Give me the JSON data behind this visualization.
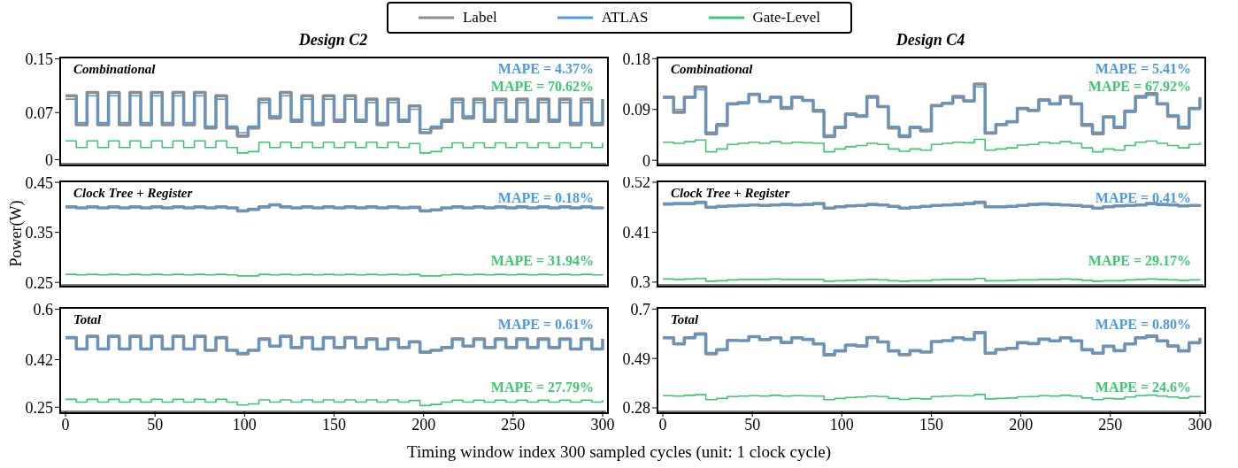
{
  "chart_data": [
    {
      "type": "step",
      "title": "Design C2",
      "subtitle": "Combinational",
      "legend": "top",
      "marker": "none",
      "line_style": "solid",
      "tick_labels": "y",
      "xlim": [
        -3,
        302
      ],
      "ylim": [
        -0.006,
        0.152
      ],
      "yticks": [
        0,
        0.07,
        0.15
      ],
      "x": [
        0,
        6,
        12,
        18,
        24,
        30,
        36,
        42,
        48,
        54,
        60,
        66,
        72,
        78,
        84,
        90,
        96,
        102,
        108,
        114,
        120,
        126,
        132,
        138,
        144,
        150,
        156,
        162,
        168,
        174,
        180,
        186,
        192,
        198,
        204,
        210,
        216,
        222,
        228,
        234,
        240,
        246,
        252,
        258,
        264,
        270,
        276,
        282,
        288,
        294,
        300
      ],
      "annotations": [
        "MAPE = 4.37%",
        "MAPE = 70.62%"
      ],
      "series": [
        {
          "name": "Label",
          "color": "#8c8c8c",
          "values": [
            0.095,
            0.052,
            0.1,
            0.052,
            0.1,
            0.052,
            0.1,
            0.052,
            0.1,
            0.052,
            0.1,
            0.052,
            0.1,
            0.047,
            0.095,
            0.047,
            0.035,
            0.047,
            0.09,
            0.062,
            0.1,
            0.057,
            0.095,
            0.052,
            0.095,
            0.057,
            0.095,
            0.057,
            0.09,
            0.052,
            0.09,
            0.057,
            0.08,
            0.04,
            0.047,
            0.057,
            0.09,
            0.062,
            0.09,
            0.057,
            0.09,
            0.057,
            0.09,
            0.057,
            0.09,
            0.057,
            0.09,
            0.052,
            0.09,
            0.052,
            0.09
          ]
        },
        {
          "name": "ATLAS",
          "color": "#4a9be3",
          "values": [
            0.09,
            0.055,
            0.095,
            0.055,
            0.095,
            0.055,
            0.095,
            0.055,
            0.095,
            0.055,
            0.095,
            0.055,
            0.095,
            0.05,
            0.09,
            0.05,
            0.04,
            0.05,
            0.085,
            0.065,
            0.095,
            0.06,
            0.09,
            0.055,
            0.09,
            0.06,
            0.09,
            0.06,
            0.085,
            0.055,
            0.085,
            0.06,
            0.075,
            0.045,
            0.05,
            0.06,
            0.085,
            0.065,
            0.085,
            0.06,
            0.085,
            0.06,
            0.085,
            0.06,
            0.085,
            0.06,
            0.085,
            0.055,
            0.085,
            0.055,
            0.085
          ]
        },
        {
          "name": "Gate-Level",
          "color": "#3cc870",
          "values": [
            0.028,
            0.018,
            0.028,
            0.018,
            0.028,
            0.018,
            0.028,
            0.018,
            0.028,
            0.018,
            0.028,
            0.018,
            0.028,
            0.018,
            0.028,
            0.018,
            0.01,
            0.012,
            0.026,
            0.018,
            0.026,
            0.018,
            0.026,
            0.018,
            0.026,
            0.018,
            0.026,
            0.018,
            0.026,
            0.018,
            0.026,
            0.018,
            0.024,
            0.01,
            0.012,
            0.018,
            0.025,
            0.018,
            0.025,
            0.018,
            0.025,
            0.018,
            0.025,
            0.018,
            0.025,
            0.018,
            0.025,
            0.018,
            0.025,
            0.018,
            0.025
          ]
        }
      ]
    },
    {
      "type": "step",
      "title": "Design C4",
      "subtitle": "Combinational",
      "marker": "none",
      "line_style": "solid",
      "tick_labels": "y",
      "xlim": [
        -3,
        302
      ],
      "ylim": [
        -0.006,
        0.182
      ],
      "yticks": [
        0,
        0.09,
        0.18
      ],
      "x": [
        0,
        6,
        12,
        18,
        24,
        30,
        36,
        42,
        48,
        54,
        60,
        66,
        72,
        78,
        84,
        90,
        96,
        102,
        108,
        114,
        120,
        126,
        132,
        138,
        144,
        150,
        156,
        162,
        168,
        174,
        180,
        186,
        192,
        198,
        204,
        210,
        216,
        222,
        228,
        234,
        240,
        246,
        252,
        258,
        264,
        270,
        276,
        282,
        288,
        294,
        300
      ],
      "annotations": [
        "MAPE = 5.41%",
        "MAPE = 67.92%"
      ],
      "series": [
        {
          "color": "#8c8c8c",
          "values": [
            0.112,
            0.085,
            0.112,
            0.13,
            0.047,
            0.062,
            0.1,
            0.102,
            0.117,
            0.104,
            0.112,
            0.092,
            0.112,
            0.106,
            0.087,
            0.042,
            0.058,
            0.082,
            0.078,
            0.113,
            0.095,
            0.057,
            0.042,
            0.058,
            0.052,
            0.097,
            0.101,
            0.113,
            0.105,
            0.135,
            0.048,
            0.063,
            0.068,
            0.092,
            0.088,
            0.107,
            0.1,
            0.113,
            0.1,
            0.062,
            0.047,
            0.077,
            0.058,
            0.087,
            0.113,
            0.118,
            0.1,
            0.078,
            0.057,
            0.092,
            0.112
          ]
        },
        {
          "color": "#4a9be3",
          "values": [
            0.11,
            0.09,
            0.11,
            0.125,
            0.05,
            0.065,
            0.1,
            0.1,
            0.115,
            0.105,
            0.11,
            0.095,
            0.11,
            0.105,
            0.09,
            0.045,
            0.06,
            0.08,
            0.08,
            0.11,
            0.095,
            0.06,
            0.045,
            0.06,
            0.055,
            0.095,
            0.1,
            0.11,
            0.105,
            0.13,
            0.05,
            0.065,
            0.07,
            0.09,
            0.09,
            0.105,
            0.1,
            0.11,
            0.1,
            0.065,
            0.05,
            0.075,
            0.06,
            0.085,
            0.11,
            0.115,
            0.1,
            0.08,
            0.06,
            0.09,
            0.11
          ]
        },
        {
          "color": "#3cc870",
          "values": [
            0.032,
            0.03,
            0.033,
            0.036,
            0.015,
            0.02,
            0.028,
            0.03,
            0.032,
            0.03,
            0.033,
            0.03,
            0.032,
            0.031,
            0.03,
            0.015,
            0.02,
            0.024,
            0.026,
            0.03,
            0.028,
            0.02,
            0.016,
            0.02,
            0.018,
            0.028,
            0.03,
            0.032,
            0.031,
            0.037,
            0.018,
            0.02,
            0.022,
            0.027,
            0.028,
            0.032,
            0.03,
            0.033,
            0.03,
            0.022,
            0.015,
            0.02,
            0.018,
            0.026,
            0.032,
            0.034,
            0.03,
            0.026,
            0.022,
            0.028,
            0.032
          ]
        }
      ]
    },
    {
      "type": "step",
      "subtitle": "Clock Tree + Register",
      "ylabel": "Power(W)",
      "marker": "none",
      "line_style": "solid",
      "tick_labels": "y",
      "xlim": [
        -3,
        302
      ],
      "ylim": [
        0.245,
        0.452
      ],
      "yticks": [
        0.25,
        0.35,
        0.45
      ],
      "x": [
        0,
        6,
        12,
        18,
        24,
        30,
        36,
        42,
        48,
        54,
        60,
        66,
        72,
        78,
        84,
        90,
        96,
        102,
        108,
        114,
        120,
        126,
        132,
        138,
        144,
        150,
        156,
        162,
        168,
        174,
        180,
        186,
        192,
        198,
        204,
        210,
        216,
        222,
        228,
        234,
        240,
        246,
        252,
        258,
        264,
        270,
        276,
        282,
        288,
        294,
        300
      ],
      "annotations": [
        "MAPE = 0.18%",
        "MAPE = 31.94%"
      ],
      "series": [
        {
          "color": "#8c8c8c",
          "values": [
            0.401,
            0.399,
            0.401,
            0.399,
            0.401,
            0.399,
            0.401,
            0.399,
            0.401,
            0.399,
            0.401,
            0.399,
            0.401,
            0.399,
            0.401,
            0.399,
            0.393,
            0.396,
            0.401,
            0.405,
            0.401,
            0.399,
            0.401,
            0.399,
            0.401,
            0.399,
            0.401,
            0.399,
            0.401,
            0.399,
            0.401,
            0.399,
            0.4,
            0.393,
            0.395,
            0.399,
            0.401,
            0.399,
            0.401,
            0.399,
            0.401,
            0.399,
            0.401,
            0.399,
            0.401,
            0.399,
            0.401,
            0.399,
            0.401,
            0.399,
            0.401
          ]
        },
        {
          "color": "#4a9be3",
          "values": [
            0.401,
            0.399,
            0.401,
            0.399,
            0.401,
            0.399,
            0.401,
            0.399,
            0.401,
            0.399,
            0.401,
            0.399,
            0.401,
            0.399,
            0.401,
            0.399,
            0.394,
            0.396,
            0.401,
            0.404,
            0.401,
            0.399,
            0.401,
            0.399,
            0.401,
            0.399,
            0.401,
            0.399,
            0.401,
            0.399,
            0.401,
            0.399,
            0.4,
            0.394,
            0.395,
            0.399,
            0.401,
            0.399,
            0.401,
            0.399,
            0.401,
            0.399,
            0.401,
            0.399,
            0.401,
            0.399,
            0.401,
            0.399,
            0.401,
            0.399,
            0.401
          ]
        },
        {
          "color": "#3cc870",
          "values": [
            0.266,
            0.265,
            0.266,
            0.265,
            0.266,
            0.265,
            0.266,
            0.265,
            0.266,
            0.265,
            0.266,
            0.265,
            0.266,
            0.265,
            0.266,
            0.265,
            0.263,
            0.263,
            0.266,
            0.265,
            0.266,
            0.265,
            0.266,
            0.265,
            0.266,
            0.265,
            0.266,
            0.265,
            0.266,
            0.265,
            0.266,
            0.265,
            0.266,
            0.263,
            0.263,
            0.265,
            0.266,
            0.265,
            0.266,
            0.265,
            0.266,
            0.265,
            0.266,
            0.265,
            0.266,
            0.265,
            0.266,
            0.265,
            0.266,
            0.265,
            0.266
          ]
        }
      ]
    },
    {
      "type": "step",
      "subtitle": "Clock Tree + Register",
      "marker": "none",
      "line_style": "solid",
      "tick_labels": "y",
      "xlim": [
        -3,
        302
      ],
      "ylim": [
        0.294,
        0.522
      ],
      "yticks": [
        0.3,
        0.41,
        0.52
      ],
      "x": [
        0,
        6,
        12,
        18,
        24,
        30,
        36,
        42,
        48,
        54,
        60,
        66,
        72,
        78,
        84,
        90,
        96,
        102,
        108,
        114,
        120,
        126,
        132,
        138,
        144,
        150,
        156,
        162,
        168,
        174,
        180,
        186,
        192,
        198,
        204,
        210,
        216,
        222,
        228,
        234,
        240,
        246,
        252,
        258,
        264,
        270,
        276,
        282,
        288,
        294,
        300
      ],
      "annotations": [
        "MAPE = 0.41%",
        "MAPE = 29.17%"
      ],
      "series": [
        {
          "color": "#8c8c8c",
          "values": [
            0.472,
            0.473,
            0.473,
            0.476,
            0.465,
            0.467,
            0.468,
            0.469,
            0.47,
            0.469,
            0.47,
            0.471,
            0.47,
            0.471,
            0.473,
            0.463,
            0.466,
            0.468,
            0.469,
            0.471,
            0.47,
            0.467,
            0.463,
            0.465,
            0.467,
            0.469,
            0.47,
            0.471,
            0.473,
            0.476,
            0.466,
            0.466,
            0.467,
            0.469,
            0.471,
            0.472,
            0.471,
            0.47,
            0.469,
            0.467,
            0.463,
            0.466,
            0.468,
            0.469,
            0.47,
            0.473,
            0.471,
            0.47,
            0.468,
            0.469,
            0.471
          ]
        },
        {
          "color": "#4a9be3",
          "values": [
            0.472,
            0.473,
            0.472,
            0.474,
            0.465,
            0.467,
            0.468,
            0.469,
            0.47,
            0.469,
            0.47,
            0.471,
            0.47,
            0.471,
            0.472,
            0.464,
            0.466,
            0.468,
            0.469,
            0.471,
            0.47,
            0.467,
            0.464,
            0.465,
            0.467,
            0.469,
            0.47,
            0.471,
            0.472,
            0.474,
            0.466,
            0.466,
            0.467,
            0.469,
            0.471,
            0.472,
            0.471,
            0.47,
            0.469,
            0.467,
            0.464,
            0.466,
            0.468,
            0.469,
            0.47,
            0.472,
            0.471,
            0.47,
            0.468,
            0.469,
            0.471
          ]
        },
        {
          "color": "#3cc870",
          "values": [
            0.307,
            0.306,
            0.307,
            0.308,
            0.302,
            0.303,
            0.305,
            0.306,
            0.306,
            0.306,
            0.307,
            0.306,
            0.306,
            0.306,
            0.306,
            0.302,
            0.303,
            0.304,
            0.305,
            0.306,
            0.305,
            0.303,
            0.302,
            0.303,
            0.303,
            0.305,
            0.306,
            0.306,
            0.306,
            0.308,
            0.303,
            0.303,
            0.304,
            0.305,
            0.305,
            0.306,
            0.306,
            0.307,
            0.306,
            0.304,
            0.302,
            0.303,
            0.303,
            0.305,
            0.306,
            0.307,
            0.306,
            0.305,
            0.304,
            0.305,
            0.306
          ]
        }
      ]
    },
    {
      "type": "step",
      "subtitle": "Total",
      "xlabel": "Timing window index 300 sampled cycles (unit: 1 clock cycle)",
      "marker": "none",
      "line_style": "solid",
      "xlim": [
        -3,
        302
      ],
      "xticks": [
        0,
        50,
        100,
        150,
        200,
        250,
        300
      ],
      "ylim": [
        0.235,
        0.605
      ],
      "yticks": [
        0.25,
        0.42,
        0.6
      ],
      "x": [
        0,
        6,
        12,
        18,
        24,
        30,
        36,
        42,
        48,
        54,
        60,
        66,
        72,
        78,
        84,
        90,
        96,
        102,
        108,
        114,
        120,
        126,
        132,
        138,
        144,
        150,
        156,
        162,
        168,
        174,
        180,
        186,
        192,
        198,
        204,
        210,
        216,
        222,
        228,
        234,
        240,
        246,
        252,
        258,
        264,
        270,
        276,
        282,
        288,
        294,
        300
      ],
      "annotations": [
        "MAPE = 0.61%",
        "MAPE = 27.79%"
      ],
      "series": [
        {
          "color": "#8c8c8c",
          "values": [
            0.499,
            0.458,
            0.504,
            0.458,
            0.504,
            0.458,
            0.504,
            0.458,
            0.504,
            0.458,
            0.504,
            0.458,
            0.504,
            0.453,
            0.499,
            0.453,
            0.441,
            0.453,
            0.494,
            0.468,
            0.504,
            0.463,
            0.499,
            0.458,
            0.499,
            0.463,
            0.499,
            0.463,
            0.494,
            0.458,
            0.494,
            0.463,
            0.484,
            0.446,
            0.453,
            0.463,
            0.494,
            0.468,
            0.494,
            0.463,
            0.494,
            0.463,
            0.494,
            0.463,
            0.494,
            0.463,
            0.494,
            0.458,
            0.494,
            0.458,
            0.494
          ]
        },
        {
          "color": "#4a9be3",
          "values": [
            0.495,
            0.46,
            0.5,
            0.46,
            0.5,
            0.46,
            0.5,
            0.46,
            0.5,
            0.46,
            0.5,
            0.46,
            0.5,
            0.455,
            0.495,
            0.455,
            0.445,
            0.455,
            0.49,
            0.47,
            0.5,
            0.465,
            0.495,
            0.46,
            0.495,
            0.465,
            0.495,
            0.465,
            0.49,
            0.46,
            0.49,
            0.465,
            0.48,
            0.45,
            0.455,
            0.465,
            0.49,
            0.47,
            0.49,
            0.465,
            0.49,
            0.465,
            0.49,
            0.465,
            0.49,
            0.465,
            0.49,
            0.46,
            0.49,
            0.46,
            0.49
          ]
        },
        {
          "color": "#3cc870",
          "values": [
            0.278,
            0.268,
            0.278,
            0.268,
            0.278,
            0.268,
            0.278,
            0.268,
            0.278,
            0.268,
            0.278,
            0.268,
            0.278,
            0.268,
            0.278,
            0.268,
            0.258,
            0.262,
            0.276,
            0.268,
            0.276,
            0.268,
            0.276,
            0.268,
            0.276,
            0.268,
            0.276,
            0.268,
            0.276,
            0.268,
            0.276,
            0.268,
            0.274,
            0.256,
            0.26,
            0.268,
            0.275,
            0.268,
            0.275,
            0.268,
            0.275,
            0.268,
            0.275,
            0.268,
            0.275,
            0.268,
            0.275,
            0.268,
            0.275,
            0.268,
            0.275
          ]
        }
      ]
    },
    {
      "type": "step",
      "subtitle": "Total",
      "marker": "none",
      "line_style": "solid",
      "xlim": [
        -3,
        302
      ],
      "xticks": [
        0,
        50,
        100,
        150,
        200,
        250,
        300
      ],
      "ylim": [
        0.265,
        0.705
      ],
      "yticks": [
        0.28,
        0.49,
        0.7
      ],
      "x": [
        0,
        6,
        12,
        18,
        24,
        30,
        36,
        42,
        48,
        54,
        60,
        66,
        72,
        78,
        84,
        90,
        96,
        102,
        108,
        114,
        120,
        126,
        132,
        138,
        144,
        150,
        156,
        162,
        168,
        174,
        180,
        186,
        192,
        198,
        204,
        210,
        216,
        222,
        228,
        234,
        240,
        246,
        252,
        258,
        264,
        270,
        276,
        282,
        288,
        294,
        300
      ],
      "annotations": [
        "MAPE = 0.80%",
        "MAPE = 24.6%"
      ],
      "series": [
        {
          "color": "#8c8c8c",
          "values": [
            0.578,
            0.552,
            0.578,
            0.595,
            0.51,
            0.527,
            0.567,
            0.566,
            0.583,
            0.57,
            0.578,
            0.558,
            0.578,
            0.571,
            0.552,
            0.505,
            0.522,
            0.547,
            0.543,
            0.579,
            0.56,
            0.522,
            0.506,
            0.523,
            0.517,
            0.562,
            0.566,
            0.578,
            0.571,
            0.6,
            0.512,
            0.528,
            0.533,
            0.557,
            0.553,
            0.572,
            0.565,
            0.578,
            0.565,
            0.527,
            0.512,
            0.542,
            0.523,
            0.552,
            0.578,
            0.585,
            0.565,
            0.543,
            0.522,
            0.557,
            0.578
          ]
        },
        {
          "color": "#4a9be3",
          "values": [
            0.575,
            0.555,
            0.575,
            0.59,
            0.515,
            0.53,
            0.565,
            0.565,
            0.58,
            0.57,
            0.575,
            0.56,
            0.575,
            0.57,
            0.555,
            0.51,
            0.525,
            0.545,
            0.545,
            0.575,
            0.56,
            0.525,
            0.51,
            0.525,
            0.52,
            0.56,
            0.565,
            0.575,
            0.57,
            0.595,
            0.515,
            0.53,
            0.535,
            0.555,
            0.555,
            0.57,
            0.565,
            0.575,
            0.565,
            0.53,
            0.515,
            0.54,
            0.525,
            0.55,
            0.575,
            0.58,
            0.565,
            0.545,
            0.525,
            0.555,
            0.575
          ]
        },
        {
          "color": "#3cc870",
          "values": [
            0.332,
            0.33,
            0.333,
            0.336,
            0.315,
            0.32,
            0.328,
            0.33,
            0.332,
            0.33,
            0.333,
            0.33,
            0.332,
            0.331,
            0.33,
            0.315,
            0.32,
            0.324,
            0.326,
            0.33,
            0.328,
            0.32,
            0.316,
            0.32,
            0.318,
            0.328,
            0.33,
            0.332,
            0.331,
            0.337,
            0.318,
            0.32,
            0.322,
            0.327,
            0.328,
            0.332,
            0.33,
            0.333,
            0.33,
            0.322,
            0.315,
            0.32,
            0.318,
            0.326,
            0.332,
            0.334,
            0.33,
            0.326,
            0.322,
            0.328,
            0.332
          ]
        }
      ]
    }
  ]
}
